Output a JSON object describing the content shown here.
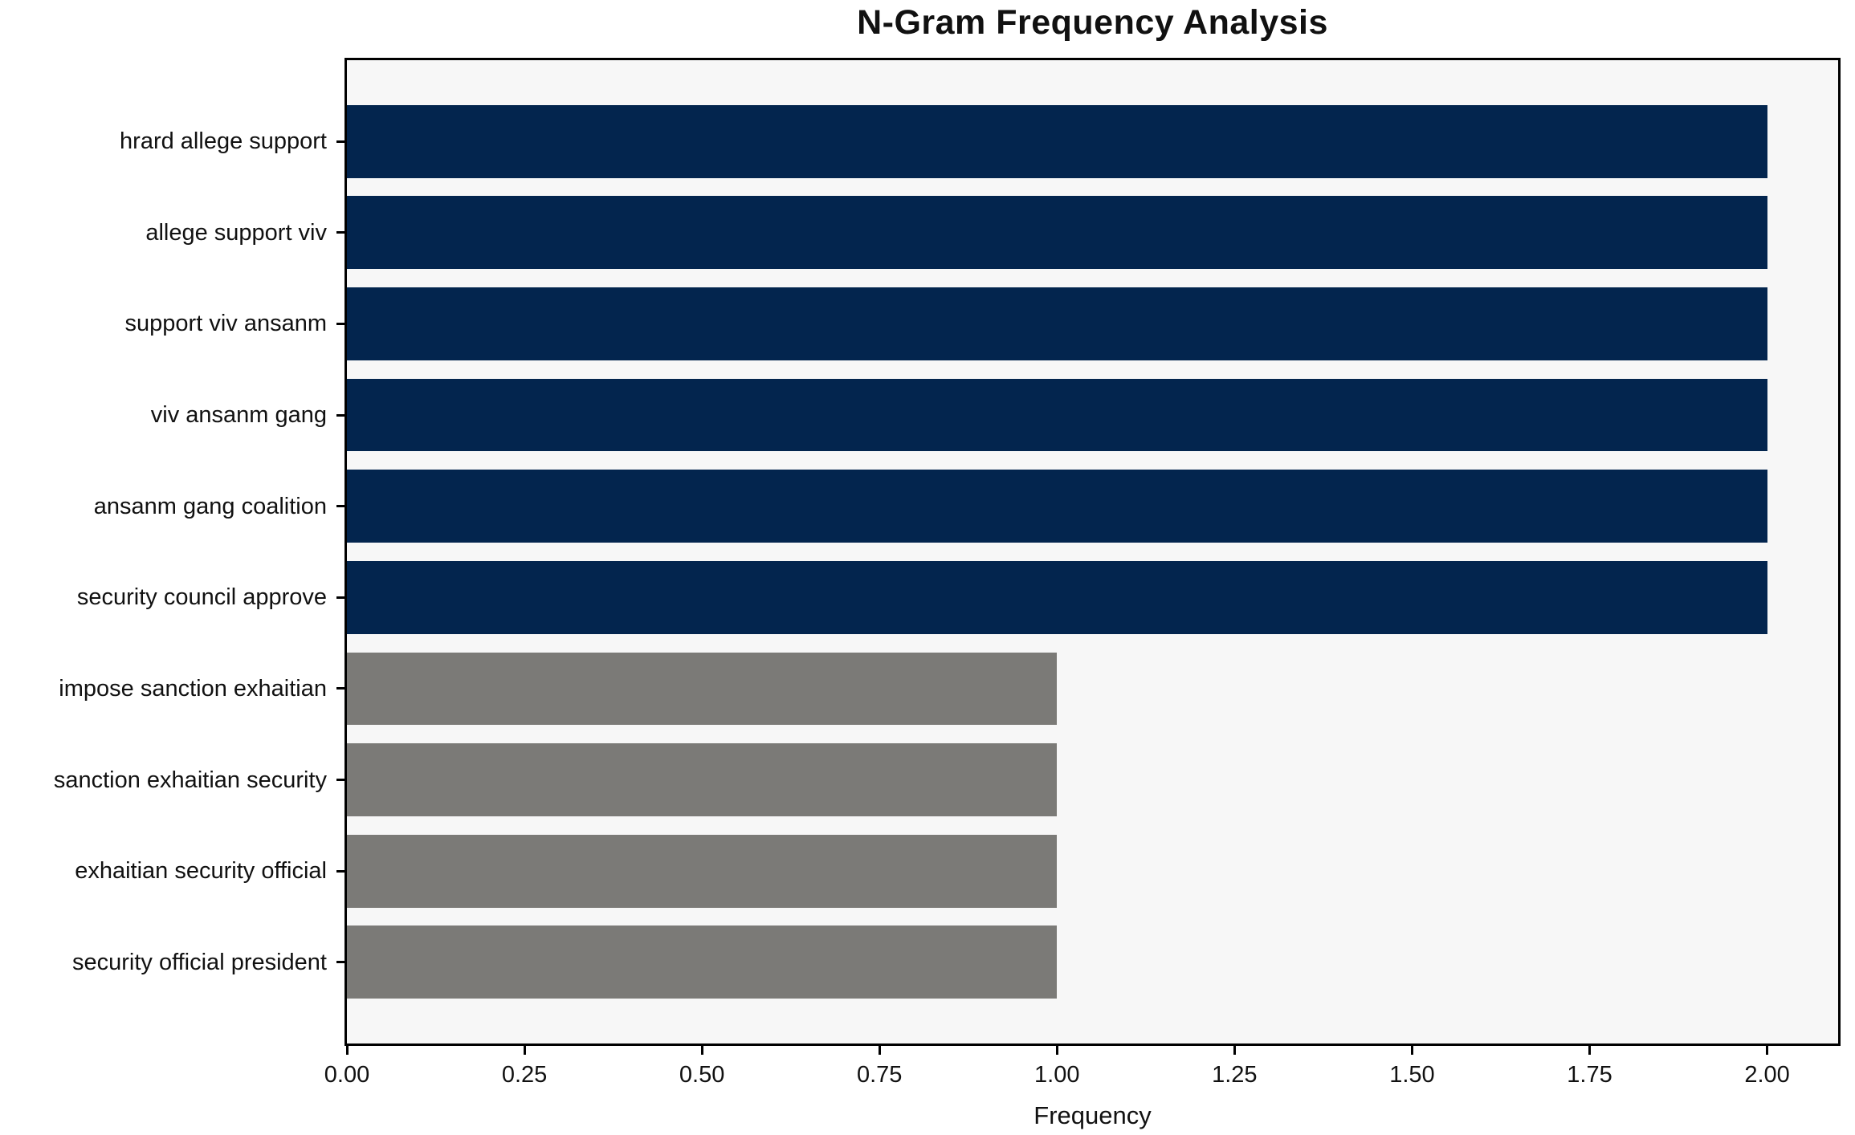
{
  "title": "N-Gram Frequency Analysis",
  "colors": {
    "bar_high": "#03254e",
    "bar_low": "#7b7a77",
    "plot_background": "#f7f7f7",
    "axis": "#000000",
    "page_background": "#ffffff"
  },
  "chart_data": {
    "type": "bar",
    "orientation": "horizontal",
    "title": "N-Gram Frequency Analysis",
    "xlabel": "Frequency",
    "ylabel": "",
    "grid": false,
    "legend": null,
    "xlim": [
      0,
      2.1
    ],
    "categories": [
      "hrard allege support",
      "allege support viv",
      "support viv ansanm",
      "viv ansanm gang",
      "ansanm gang coalition",
      "security council approve",
      "impose sanction exhaitian",
      "sanction exhaitian security",
      "exhaitian security official",
      "security official president"
    ],
    "values": [
      2,
      2,
      2,
      2,
      2,
      2,
      1,
      1,
      1,
      1
    ],
    "bar_colors": [
      "#03254e",
      "#03254e",
      "#03254e",
      "#03254e",
      "#03254e",
      "#03254e",
      "#7b7a77",
      "#7b7a77",
      "#7b7a77",
      "#7b7a77"
    ],
    "xticks": {
      "values": [
        0,
        0.25,
        0.5,
        0.75,
        1.0,
        1.25,
        1.5,
        1.75,
        2.0
      ],
      "labels": [
        "0.00",
        "0.25",
        "0.50",
        "0.75",
        "1.00",
        "1.25",
        "1.50",
        "1.75",
        "2.00"
      ]
    }
  }
}
